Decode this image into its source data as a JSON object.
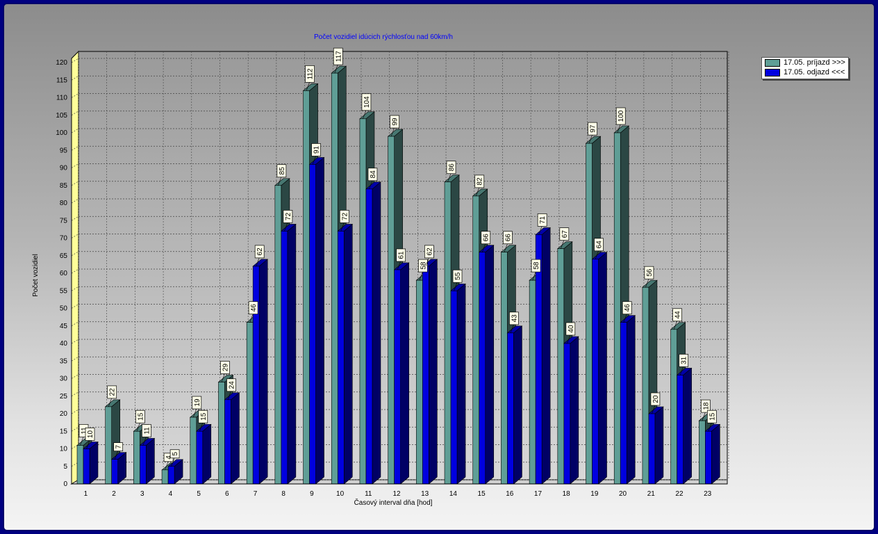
{
  "chart_data": {
    "type": "bar",
    "title": "Počet vozidiel idúcich rýchlosťou nad 60km/h",
    "xlabel": "Časový interval dňa [hod]",
    "ylabel": "Počet vozidiel",
    "ylim": [
      0,
      125
    ],
    "yticks": [
      0,
      5,
      10,
      15,
      20,
      25,
      30,
      35,
      40,
      45,
      50,
      55,
      60,
      65,
      70,
      75,
      80,
      85,
      90,
      95,
      100,
      105,
      110,
      115,
      120
    ],
    "grid": true,
    "legend_position": "top-right",
    "categories": [
      "1",
      "2",
      "3",
      "4",
      "5",
      "6",
      "7",
      "8",
      "9",
      "10",
      "11",
      "12",
      "13",
      "14",
      "15",
      "16",
      "17",
      "18",
      "19",
      "20",
      "21",
      "22",
      "23"
    ],
    "series": [
      {
        "name": "17.05. príjazd >>>",
        "color": "#5f9e96",
        "values": [
          11,
          22,
          15,
          4,
          19,
          29,
          46,
          85,
          112,
          117,
          104,
          99,
          58,
          86,
          82,
          66,
          58,
          67,
          97,
          100,
          56,
          44,
          18
        ]
      },
      {
        "name": "17.05. odjazd <<<",
        "color": "#0000e0",
        "values": [
          10,
          7,
          11,
          5,
          15,
          24,
          62,
          72,
          91,
          72,
          84,
          61,
          62,
          55,
          66,
          43,
          71,
          40,
          64,
          46,
          20,
          31,
          15
        ]
      }
    ]
  }
}
